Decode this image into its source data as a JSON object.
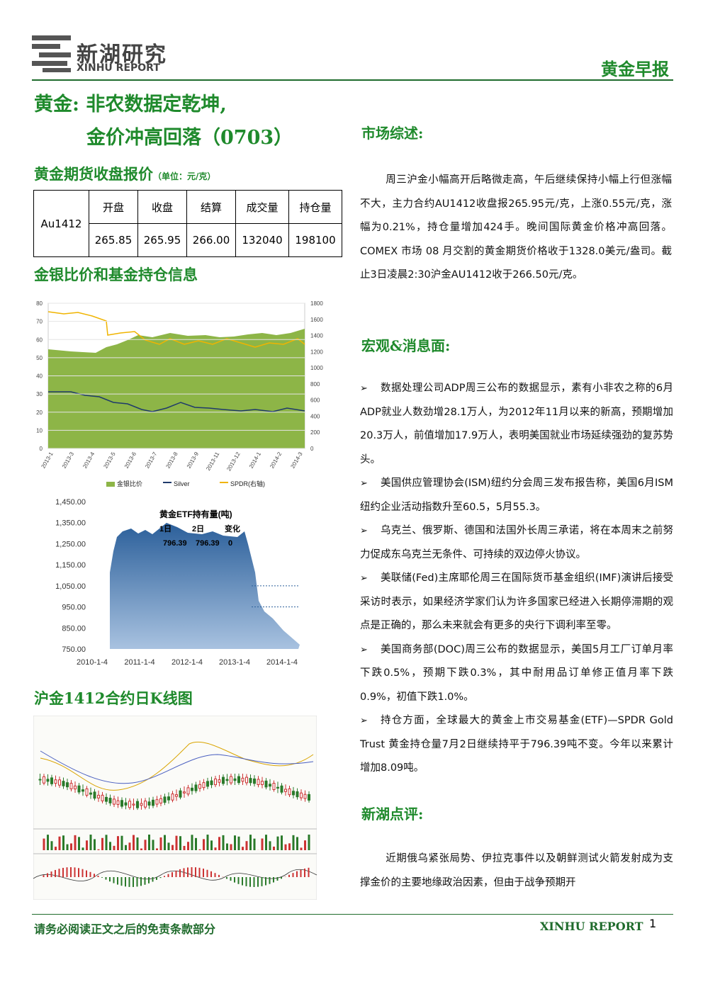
{
  "header": {
    "logo_cn": "新湖研究",
    "logo_en": "XINHU REPORT",
    "report_type": "黄金早报"
  },
  "title": {
    "line1": "黄金: 非农数据定乾坤,",
    "line2": "金价冲高回落（0703）"
  },
  "price_section": {
    "heading": "黄金期货收盘报价",
    "unit": "（单位：元/克）",
    "table": {
      "contract": "Au1412",
      "headers": [
        "开盘",
        "收盘",
        "结算",
        "成交量",
        "持仓量"
      ],
      "values": [
        "265.85",
        "265.95",
        "266.00",
        "132040",
        "198100"
      ]
    }
  },
  "chart_section": {
    "heading": "金银比价和基金持仓信息"
  },
  "ratio_chart": {
    "left_ticks": [
      "0",
      "10",
      "20",
      "30",
      "40",
      "50",
      "60",
      "70",
      "80"
    ],
    "right_ticks": [
      "0",
      "200",
      "400",
      "600",
      "800",
      "1000",
      "1200",
      "1400",
      "1600",
      "1800"
    ],
    "x_labels": [
      "2013-1",
      "2013-3",
      "2013-4",
      "2013-5",
      "2013-6",
      "2013-7",
      "2013-8",
      "2013-9",
      "2013-11",
      "2013-12",
      "2014-1",
      "2014-2",
      "2014-3"
    ],
    "legend": [
      "金银比价",
      "Silver",
      "SPDR(右轴)"
    ]
  },
  "etf_chart": {
    "y_labels": [
      "1,450.00",
      "1,350.00",
      "1,250.00",
      "1,150.00",
      "1,050.00",
      "950.00",
      "850.00",
      "750.00"
    ],
    "x_labels": [
      "2010-1-4",
      "2011-1-4",
      "2012-1-4",
      "2013-1-4",
      "2014-1-4"
    ],
    "inset_title": "黄金ETF持有量(吨)",
    "inset_headers": [
      "1日",
      "2日",
      "变化"
    ],
    "inset_values": [
      "796.39",
      "796.39",
      "0"
    ]
  },
  "kline_section": {
    "heading": "沪金1412合约日K线图"
  },
  "market": {
    "heading": "市场综述:",
    "text": "周三沪金小幅高开后略微走高，午后继续保持小幅上行但涨幅不大，主力合约AU1412收盘报265.95元/克，上涨0.55元/克，涨幅为0.21%，持仓量增加424手。晚间国际黄金价格冲高回落。COMEX 市场 08 月交割的黄金期货价格收于1328.0美元/盎司。截止3日凌晨2:30沪金AU1412收于266.50元/克。"
  },
  "macro": {
    "heading": "宏观&消息面:",
    "items": [
      "数据处理公司ADP周三公布的数据显示，素有小非农之称的6月ADP就业人数劲增28.1万人，为2012年11月以来的新高，预期增加20.3万人，前值增加17.9万人，表明美国就业市场延续强劲的复苏势头。",
      "美国供应管理协会(ISM)纽约分会周三发布报告称，美国6月ISM纽约企业活动指数升至60.5，5月55.3。",
      "乌克兰、俄罗斯、德国和法国外长周三承诺，将在本周末之前努力促成东乌克兰无条件、可持续的双边停火协议。",
      "美联储(Fed)主席耶伦周三在国际货币基金组织(IMF)演讲后接受采访时表示，如果经济学家们认为许多国家已经进入长期停滞期的观点是正确的，那么未来就会有更多的央行下调利率至零。",
      "美国商务部(DOC)周三公布的数据显示，美国5月工厂订单月率下跌0.5%，预期下跌0.3%，其中耐用品订单修正值月率下跌0.9%，初值下跌1.0%。",
      "持仓方面，全球最大的黄金上市交易基金(ETF)—SPDR Gold Trust 黄金持仓量7月2日继续持平于796.39吨不变。今年以来累计增加8.09吨。"
    ]
  },
  "comment": {
    "heading": "新湖点评:",
    "text": "近期俄乌紧张局势、伊拉克事件以及朝鲜测试火箭发射成为支撑金价的主要地缘政治因素，但由于战争预期开"
  },
  "footer": {
    "disclaimer": "请务必阅读正文之后的免责条款部分",
    "brand": "XINHU REPORT",
    "page": "1"
  }
}
